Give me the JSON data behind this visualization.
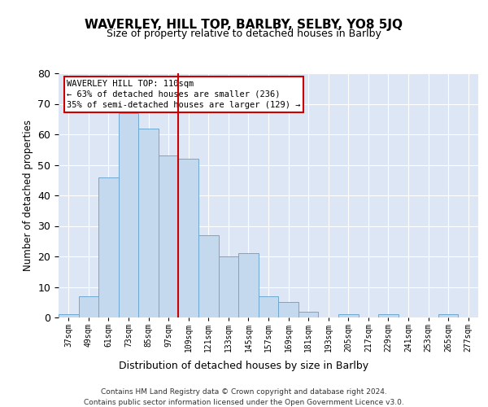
{
  "title": "WAVERLEY, HILL TOP, BARLBY, SELBY, YO8 5JQ",
  "subtitle": "Size of property relative to detached houses in Barlby",
  "xlabel": "Distribution of detached houses by size in Barlby",
  "ylabel": "Number of detached properties",
  "bar_color": "#c5d9ee",
  "bar_edge_color": "#6ea8d0",
  "background_color": "#dce6f5",
  "categories": [
    "37sqm",
    "49sqm",
    "61sqm",
    "73sqm",
    "85sqm",
    "97sqm",
    "109sqm",
    "121sqm",
    "133sqm",
    "145sqm",
    "157sqm",
    "169sqm",
    "181sqm",
    "193sqm",
    "205sqm",
    "217sqm",
    "229sqm",
    "241sqm",
    "253sqm",
    "265sqm",
    "277sqm"
  ],
  "values": [
    1,
    7,
    46,
    67,
    62,
    53,
    52,
    27,
    20,
    21,
    7,
    5,
    2,
    0,
    1,
    0,
    1,
    0,
    0,
    1,
    0
  ],
  "ylim": [
    0,
    80
  ],
  "yticks": [
    0,
    10,
    20,
    30,
    40,
    50,
    60,
    70,
    80
  ],
  "vline_index": 6,
  "vline_color": "#cc0000",
  "annotation_text": "WAVERLEY HILL TOP: 110sqm\n← 63% of detached houses are smaller (236)\n35% of semi-detached houses are larger (129) →",
  "annotation_box_color": "#ffffff",
  "annotation_box_edge": "#cc0000",
  "footnote1": "Contains HM Land Registry data © Crown copyright and database right 2024.",
  "footnote2": "Contains public sector information licensed under the Open Government Licence v3.0."
}
